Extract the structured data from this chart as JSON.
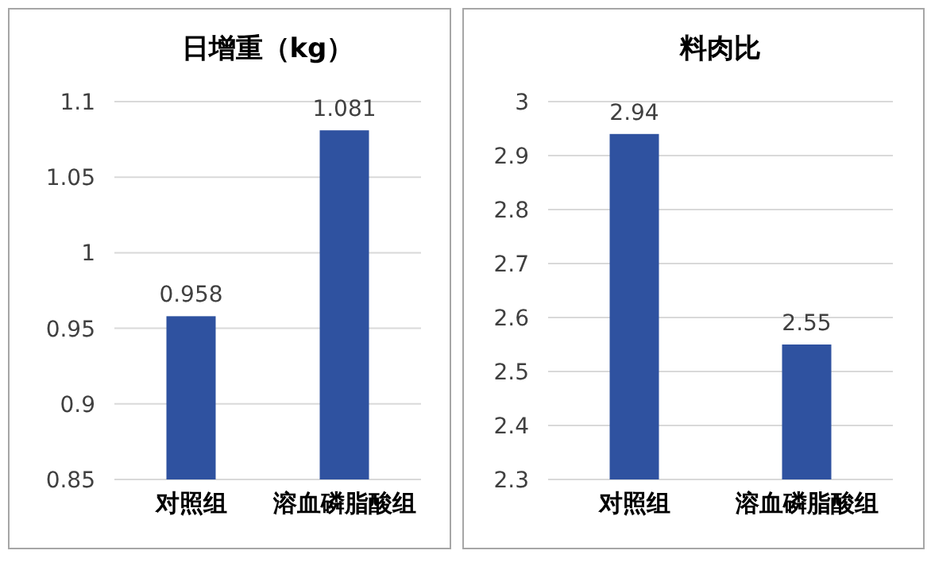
{
  "chart_data": [
    {
      "type": "bar",
      "title": "日增重（kg）",
      "categories": [
        "对照组",
        "溶血磷脂酸组"
      ],
      "values": [
        0.958,
        1.081
      ],
      "color": "#2f52a0",
      "ylim": [
        0.85,
        1.1
      ],
      "yticks": [
        0.85,
        0.9,
        0.95,
        1,
        1.05,
        1.1
      ],
      "grid": "y",
      "data_labels": true
    },
    {
      "type": "bar",
      "title": "料肉比",
      "categories": [
        "对照组",
        "溶血磷脂酸组"
      ],
      "values": [
        2.94,
        2.55
      ],
      "color": "#2f52a0",
      "ylim": [
        2.3,
        3
      ],
      "yticks": [
        2.3,
        2.4,
        2.5,
        2.6,
        2.7,
        2.8,
        2.9,
        3
      ],
      "grid": "y",
      "data_labels": true
    }
  ]
}
